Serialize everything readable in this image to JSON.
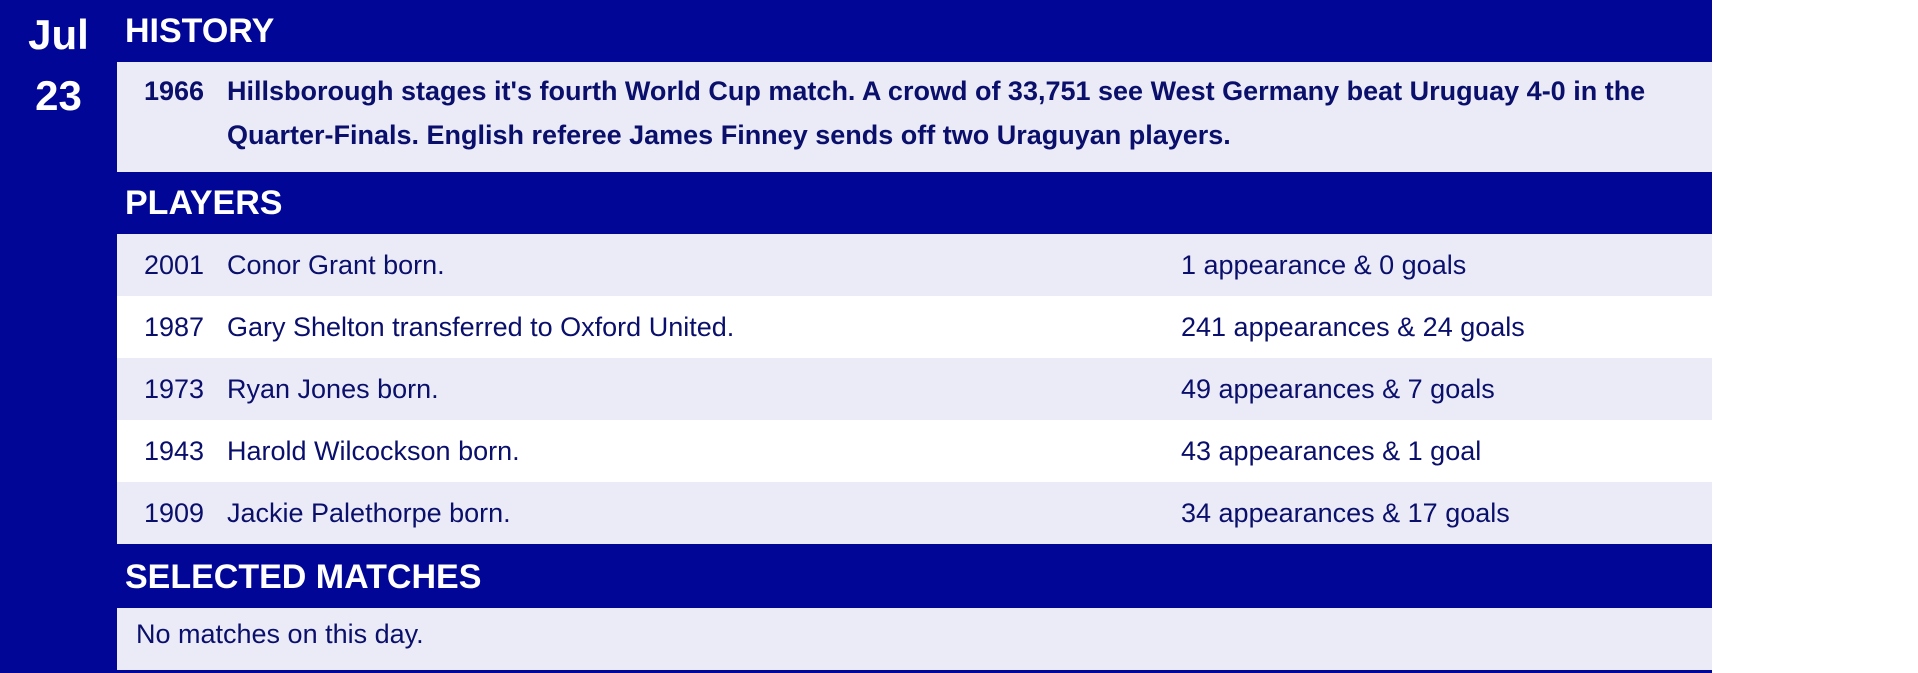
{
  "date": {
    "month": "Jul",
    "day": "23"
  },
  "history": {
    "title": "HISTORY",
    "year": "1966",
    "text": "Hillsborough stages it's fourth World Cup match.  A crowd of 33,751 see West Germany beat Uruguay 4-0 in the Quarter-Finals.  English referee James Finney sends off two Uraguyan players."
  },
  "players": {
    "title": "PLAYERS",
    "rows": [
      {
        "year": "2001",
        "desc": "Conor Grant born.",
        "stats": "1 appearance & 0 goals"
      },
      {
        "year": "1987",
        "desc": "Gary Shelton transferred to Oxford United.",
        "stats": "241 appearances & 24 goals"
      },
      {
        "year": "1973",
        "desc": "Ryan Jones born.",
        "stats": "49 appearances & 7 goals"
      },
      {
        "year": "1943",
        "desc": "Harold Wilcockson born.",
        "stats": "43 appearances & 1 goal"
      },
      {
        "year": "1909",
        "desc": "Jackie Palethorpe born.",
        "stats": "34 appearances & 17 goals"
      }
    ]
  },
  "matches": {
    "title": "SELECTED MATCHES",
    "empty_text": "No matches on this day."
  },
  "colors": {
    "navy": "#020697",
    "row_shade": "#ebebf7",
    "text": "#0a0f6b"
  }
}
